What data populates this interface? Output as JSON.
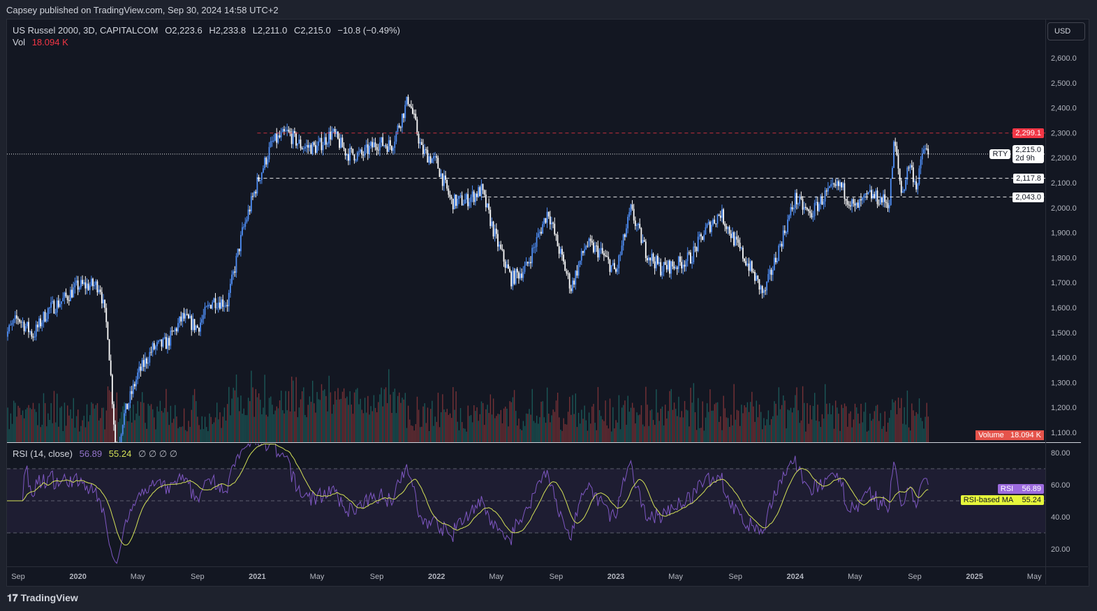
{
  "published": "Capsey published on TradingView.com, Sep 30, 2024 14:58 UTC+2",
  "legend": {
    "symbol": "US Russel 2000, 3D, CAPITALCOM",
    "open": "O2,223.6",
    "high": "H2,233.8",
    "low": "L2,211.0",
    "close": "C2,215.0",
    "change": "−10.8 (−0.49%)",
    "vol_label": "Vol",
    "vol_value": "18.094 K"
  },
  "rsi_legend": {
    "title": "RSI (14, close)",
    "rsi": "56.89",
    "ma": "55.24",
    "extras": "∅ ∅ ∅ ∅"
  },
  "currency": "USD",
  "tags": {
    "line_red": "2,299.1",
    "symbol": "RTY",
    "last_price": "2,215.0",
    "countdown": "2d 9h",
    "line_1": "2,117.8",
    "line_2": "2,043.0",
    "volume_label": "Volume",
    "volume_value": "18.094 K",
    "rsi_label": "RSI",
    "rsi_value": "56.89",
    "rsi_ma_label": "RSI-based MA",
    "rsi_ma_value": "55.24"
  },
  "footer": {
    "brand": "TradingView"
  },
  "colors": {
    "up": "#4f8ff7",
    "down": "#ffffff",
    "rsi": "#7e57c2",
    "rsi_ma": "#d4e157",
    "red_line": "#f23645",
    "bg": "#131722"
  },
  "chart_data": {
    "type": "candlestick",
    "timeframe": "3D",
    "price_axis": {
      "ticks": [
        "2,600.0",
        "2,500.0",
        "2,400.0",
        "2,300.0",
        "2,200.0",
        "2,100.0",
        "2,000.0",
        "1,900.0",
        "1,800.0",
        "1,700.0",
        "1,600.0",
        "1,500.0",
        "1,400.0",
        "1,300.0",
        "1,200.0",
        "1,100.0"
      ],
      "range": [
        1100,
        2600
      ]
    },
    "time_axis": {
      "ticks": [
        "Sep",
        "2020",
        "May",
        "Sep",
        "2021",
        "May",
        "Sep",
        "2022",
        "May",
        "Sep",
        "2023",
        "May",
        "Sep",
        "2024",
        "May",
        "Sep",
        "2025",
        "May"
      ]
    },
    "horizontal_lines": [
      {
        "value": 2299.1,
        "style": "dashed",
        "color": "#f23645",
        "from": "2021-01-01"
      },
      {
        "value": 2117.8,
        "style": "dashed",
        "color": "#ffffff",
        "from": "2021-01-01"
      },
      {
        "value": 2043.0,
        "style": "dashed",
        "color": "#ffffff",
        "from": "2022-04-01"
      },
      {
        "value": 2215.0,
        "style": "dotted",
        "color": "#ffffff",
        "from": "2019-08-01"
      }
    ],
    "close_path": [
      [
        "2019-08-01",
        1477
      ],
      [
        "2019-09-01",
        1560
      ],
      [
        "2019-10-01",
        1490
      ],
      [
        "2019-11-01",
        1590
      ],
      [
        "2019-12-01",
        1630
      ],
      [
        "2020-01-01",
        1687
      ],
      [
        "2020-02-15",
        1690
      ],
      [
        "2020-03-01",
        1500
      ],
      [
        "2020-03-18",
        1000
      ],
      [
        "2020-04-01",
        1150
      ],
      [
        "2020-05-01",
        1330
      ],
      [
        "2020-06-01",
        1435
      ],
      [
        "2020-07-01",
        1460
      ],
      [
        "2020-08-01",
        1560
      ],
      [
        "2020-09-01",
        1520
      ],
      [
        "2020-10-01",
        1630
      ],
      [
        "2020-11-01",
        1620
      ],
      [
        "2020-12-01",
        1900
      ],
      [
        "2021-01-01",
        2100
      ],
      [
        "2021-02-01",
        2260
      ],
      [
        "2021-03-01",
        2300
      ],
      [
        "2021-04-01",
        2245
      ],
      [
        "2021-05-01",
        2240
      ],
      [
        "2021-06-01",
        2300
      ],
      [
        "2021-07-01",
        2218
      ],
      [
        "2021-08-01",
        2210
      ],
      [
        "2021-09-01",
        2260
      ],
      [
        "2021-10-01",
        2250
      ],
      [
        "2021-11-05",
        2440
      ],
      [
        "2021-12-01",
        2230
      ],
      [
        "2022-01-01",
        2180
      ],
      [
        "2022-02-01",
        2022
      ],
      [
        "2022-03-01",
        2030
      ],
      [
        "2022-04-01",
        2070
      ],
      [
        "2022-05-01",
        1870
      ],
      [
        "2022-06-01",
        1714
      ],
      [
        "2022-07-01",
        1760
      ],
      [
        "2022-08-15",
        1990
      ],
      [
        "2022-09-01",
        1870
      ],
      [
        "2022-10-01",
        1680
      ],
      [
        "2022-11-01",
        1854
      ],
      [
        "2022-12-01",
        1820
      ],
      [
        "2023-01-01",
        1740
      ],
      [
        "2023-02-01",
        1990
      ],
      [
        "2023-03-01",
        1826
      ],
      [
        "2023-04-01",
        1757
      ],
      [
        "2023-05-01",
        1770
      ],
      [
        "2023-06-01",
        1800
      ],
      [
        "2023-07-01",
        1910
      ],
      [
        "2023-08-01",
        1980
      ],
      [
        "2023-09-01",
        1860
      ],
      [
        "2023-10-01",
        1757
      ],
      [
        "2023-10-28",
        1650
      ],
      [
        "2023-12-01",
        1854
      ],
      [
        "2024-01-01",
        2036
      ],
      [
        "2024-02-01",
        1970
      ],
      [
        "2024-03-01",
        2050
      ],
      [
        "2024-04-01",
        2090
      ],
      [
        "2024-05-01",
        1994
      ],
      [
        "2024-06-01",
        2050
      ],
      [
        "2024-07-10",
        2020
      ],
      [
        "2024-07-20",
        2270
      ],
      [
        "2024-08-05",
        2050
      ],
      [
        "2024-08-20",
        2180
      ],
      [
        "2024-09-06",
        2080
      ],
      [
        "2024-09-18",
        2240
      ],
      [
        "2024-09-28",
        2215
      ]
    ],
    "rsi": {
      "period": 14,
      "ma_period": 14,
      "axis_ticks": [
        "80.00",
        "60.00",
        "40.00",
        "20.00"
      ],
      "levels": [
        70,
        50,
        30
      ],
      "range": [
        10,
        90
      ]
    }
  }
}
